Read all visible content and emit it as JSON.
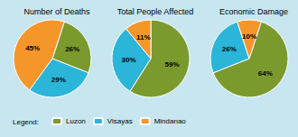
{
  "chart_data": [
    {
      "type": "pie",
      "title": "Number of Deaths",
      "categories": [
        "Luzon",
        "Visayas",
        "Mindanao"
      ],
      "values": [
        26,
        29,
        45
      ],
      "value_labels": [
        "26%",
        "29%",
        "45%"
      ],
      "colors": [
        "#7a9a2e",
        "#2bb5d8",
        "#f5962a"
      ],
      "data_labels": true,
      "legend": "bottom left",
      "annotations": [
        "Legend:"
      ]
    },
    {
      "type": "pie",
      "title": "Total People Affected",
      "categories": [
        "Luzon",
        "Visayas",
        "Mindanao"
      ],
      "values": [
        59,
        30,
        11
      ],
      "value_labels": [
        "59%",
        "30%",
        "11%"
      ],
      "colors": [
        "#7a9a2e",
        "#2bb5d8",
        "#f5962a"
      ],
      "data_labels": true
    },
    {
      "type": "pie",
      "title": "Economic Damage",
      "categories": [
        "Luzon",
        "Visayas",
        "Mindanao"
      ],
      "values": [
        64,
        26,
        10
      ],
      "value_labels": [
        "64%",
        "26%",
        "10%"
      ],
      "colors": [
        "#7a9a2e",
        "#2bb5d8",
        "#f5962a"
      ],
      "data_labels": true
    }
  ]
}
